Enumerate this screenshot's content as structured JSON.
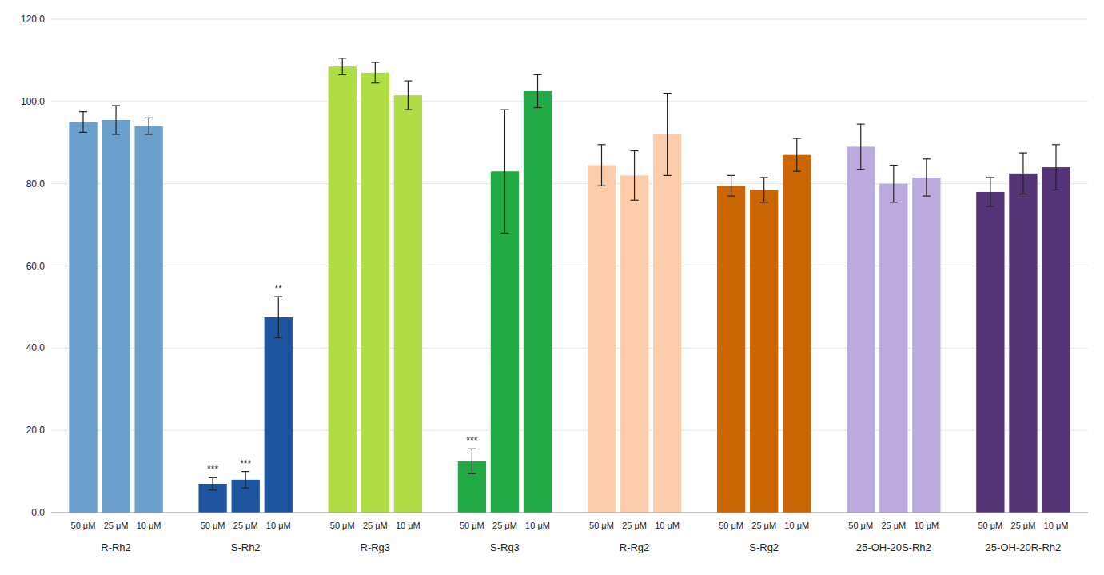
{
  "chart_data": {
    "type": "bar",
    "series": [
      {
        "name": "R-Rh2",
        "color": "#6B9FCC",
        "categories": [
          "50 μM",
          "25 μM",
          "10 μM"
        ],
        "values": [
          95.0,
          95.5,
          94.0
        ],
        "errors": [
          2.5,
          3.5,
          2.0
        ],
        "annotations": [
          null,
          null,
          null
        ]
      },
      {
        "name": "S-Rh2",
        "color": "#1E55A0",
        "categories": [
          "50 μM",
          "25 μM",
          "10 μM"
        ],
        "values": [
          7.0,
          8.0,
          47.5
        ],
        "errors": [
          1.5,
          2.0,
          5.0
        ],
        "annotations": [
          "***",
          "***",
          "**"
        ]
      },
      {
        "name": "R-Rg3",
        "color": "#AEDD44",
        "categories": [
          "50 μM",
          "25 μM",
          "10 μM"
        ],
        "values": [
          108.5,
          107.0,
          101.5
        ],
        "errors": [
          2.0,
          2.5,
          3.5
        ],
        "annotations": [
          null,
          null,
          null
        ]
      },
      {
        "name": "S-Rg3",
        "color": "#22AA44",
        "categories": [
          "50 μM",
          "25 μM",
          "10 μM"
        ],
        "values": [
          12.5,
          83.0,
          102.5
        ],
        "errors": [
          3.0,
          15.0,
          4.0
        ],
        "annotations": [
          "***",
          null,
          null
        ]
      },
      {
        "name": "R-Rg2",
        "color": "#FFCCAA",
        "categories": [
          "50 μM",
          "25 μM",
          "10 μM"
        ],
        "values": [
          84.5,
          82.0,
          92.0
        ],
        "errors": [
          5.0,
          6.0,
          10.0
        ],
        "annotations": [
          null,
          null,
          null
        ]
      },
      {
        "name": "S-Rg2",
        "color": "#CC6600",
        "categories": [
          "50 μM",
          "25 μM",
          "10 μM"
        ],
        "values": [
          79.5,
          78.5,
          87.0
        ],
        "errors": [
          2.5,
          3.0,
          4.0
        ],
        "annotations": [
          null,
          null,
          null
        ]
      },
      {
        "name": "25-OH-20S-Rh2",
        "color": "#BBAADD",
        "categories": [
          "50 μM",
          "25 μM",
          "10 μM"
        ],
        "values": [
          89.0,
          80.0,
          81.5
        ],
        "errors": [
          5.5,
          4.5,
          4.5
        ],
        "annotations": [
          null,
          null,
          null
        ]
      },
      {
        "name": "25-OH-20R-Rh2",
        "color": "#553377",
        "categories": [
          "50 μM",
          "25 μM",
          "10 μM"
        ],
        "values": [
          78.0,
          82.5,
          84.0
        ],
        "errors": [
          3.5,
          5.0,
          5.5
        ],
        "annotations": [
          null,
          null,
          null
        ]
      }
    ],
    "ylim": [
      0,
      120
    ],
    "yticks": [
      {
        "value": 0.0,
        "label": "0.0"
      },
      {
        "value": 20.0,
        "label": "20.0"
      },
      {
        "value": 40.0,
        "label": "40.0"
      },
      {
        "value": 60.0,
        "label": "60.0"
      },
      {
        "value": 80.0,
        "label": "80.0"
      },
      {
        "value": 100.0,
        "label": "100.0"
      },
      {
        "value": 120.0,
        "label": "120.0"
      }
    ],
    "grid": true
  }
}
